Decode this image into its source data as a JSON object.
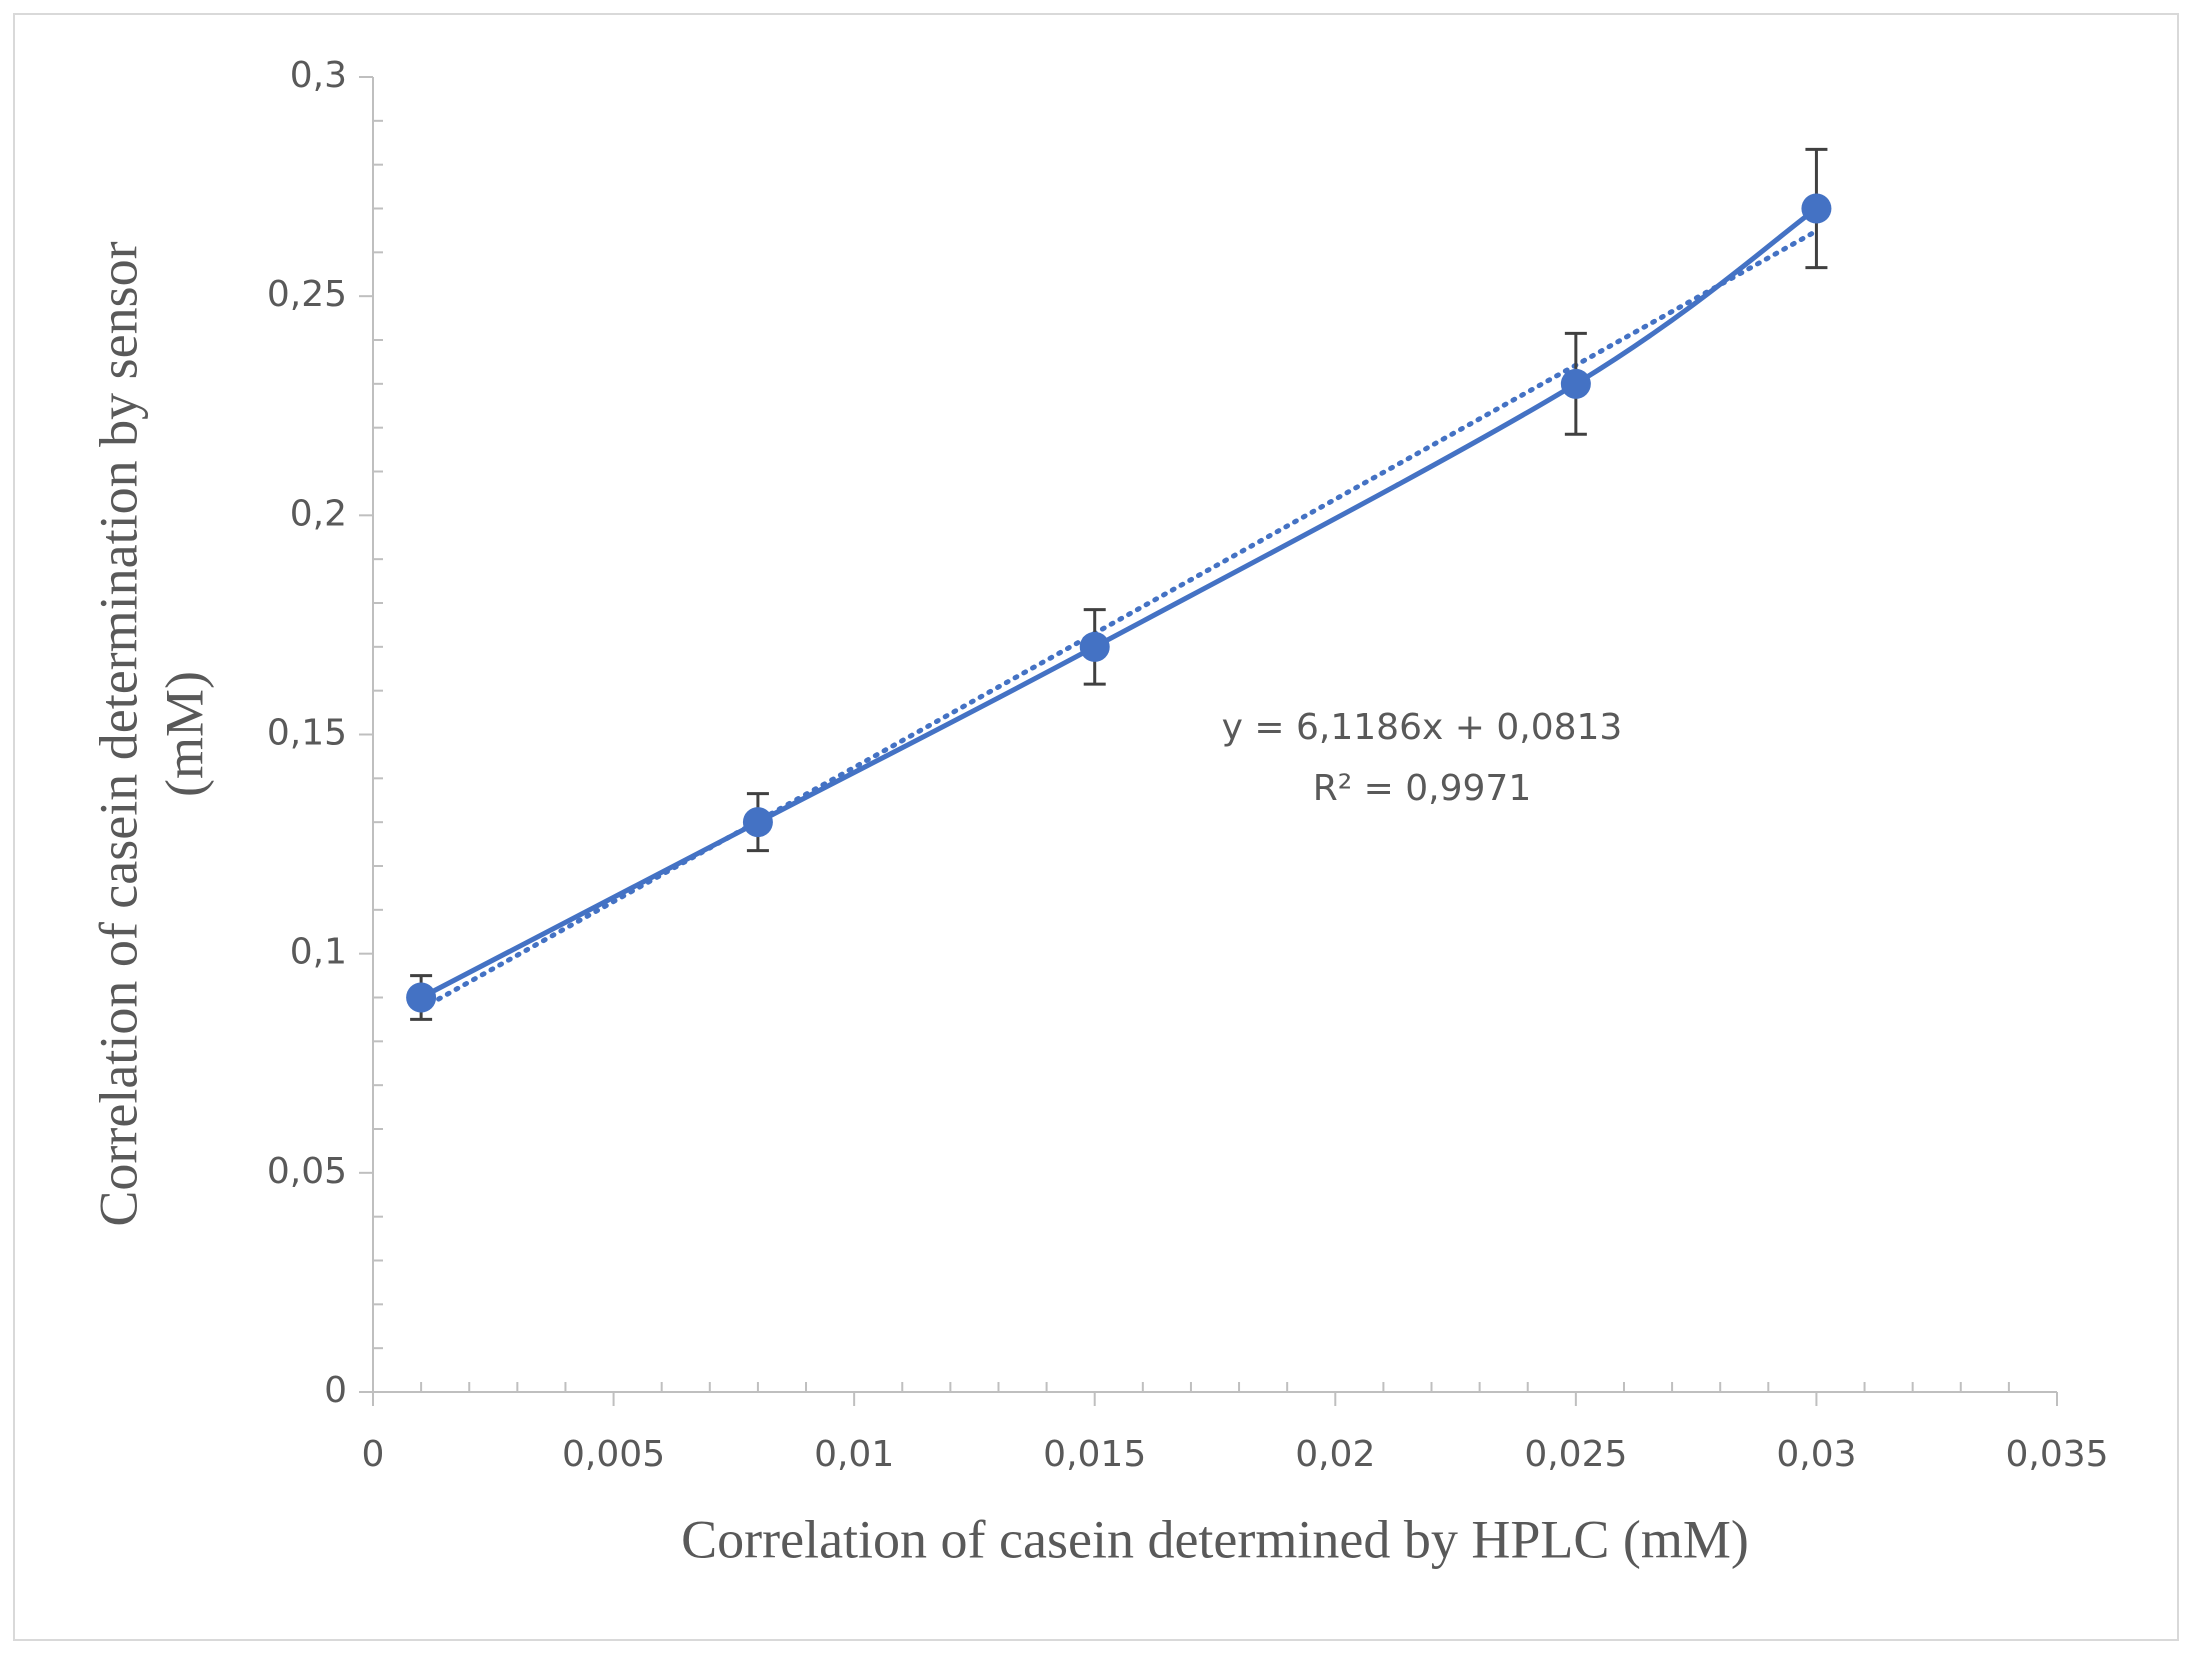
{
  "chart_data": {
    "type": "scatter",
    "x_label": "Correlation of casein determined by HPLC (mM)",
    "y_label": [
      "Correlation of casein determination by sensor",
      "(mM)"
    ],
    "series": [
      {
        "color": "#4472c4",
        "x": [
          0.001,
          0.008,
          0.015,
          0.025,
          0.03
        ],
        "values": [
          0.09,
          0.13,
          0.17,
          0.23,
          0.27
        ],
        "errors": [
          0.005,
          0.0065,
          0.0085,
          0.0115,
          0.0135
        ]
      }
    ],
    "trendline": {
      "slope": 6.1186,
      "intercept": 0.0813,
      "label": "y = 6,1186x + 0,0813",
      "r2_label": "R² = 0,9971"
    },
    "xlim": [
      0,
      0.035
    ],
    "xticks": [
      0,
      {
        "value": 0.005,
        "label": "0,005"
      },
      {
        "value": 0.01,
        "label": "0,01"
      },
      {
        "value": 0.015,
        "label": "0,015"
      },
      {
        "value": 0.02,
        "label": "0,02"
      },
      {
        "value": 0.025,
        "label": "0,025"
      },
      {
        "value": 0.03,
        "label": "0,03"
      },
      {
        "value": 0.035,
        "label": "0,035"
      }
    ],
    "ylim": [
      0,
      0.3
    ],
    "yticks": [
      0,
      {
        "value": 0.05,
        "label": "0,05"
      },
      {
        "value": 0.1,
        "label": "0,1"
      },
      {
        "value": 0.15,
        "label": "0,15"
      },
      {
        "value": 0.2,
        "label": "0,2"
      },
      {
        "value": 0.25,
        "label": "0,25"
      },
      {
        "value": 0.3,
        "label": "0,3"
      }
    ]
  }
}
